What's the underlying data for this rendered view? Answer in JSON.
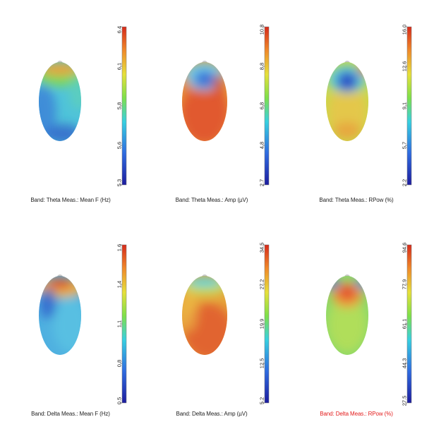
{
  "chart_data": [
    {
      "type": "heatmap",
      "caption": "Band: Theta   Meas.: Mean F (Hz)",
      "caption_color": "#222222",
      "scale_ticks": [
        "5.3",
        "5.6",
        "5.8",
        "6.1",
        "6.4"
      ],
      "range": [
        5.3,
        6.4
      ]
    },
    {
      "type": "heatmap",
      "caption": "Band: Theta   Meas.: Amp (µV)",
      "caption_color": "#222222",
      "scale_ticks": [
        "2.7",
        "4.8",
        "6.8",
        "8.8",
        "10.8"
      ],
      "range": [
        2.7,
        10.8
      ]
    },
    {
      "type": "heatmap",
      "caption": "Band: Theta   Meas.: RPow (%)",
      "caption_color": "#222222",
      "scale_ticks": [
        "2.2",
        "5.7",
        "9.1",
        "12.6",
        "16.0"
      ],
      "range": [
        2.2,
        16.0
      ]
    },
    {
      "type": "heatmap",
      "caption": "Band: Delta   Meas.: Mean F (Hz)",
      "caption_color": "#222222",
      "scale_ticks": [
        "0.5",
        "0.8",
        "1.1",
        "1.4",
        "1.6"
      ],
      "range": [
        0.5,
        1.6
      ]
    },
    {
      "type": "heatmap",
      "caption": "Band: Delta   Meas.: Amp (µV)",
      "caption_color": "#222222",
      "scale_ticks": [
        "5.2",
        "12.5",
        "19.9",
        "27.2",
        "34.5"
      ],
      "range": [
        5.2,
        34.5
      ]
    },
    {
      "type": "heatmap",
      "caption": "Band: Delta   Meas.: RPow (%)",
      "caption_color": "#e31b1b",
      "scale_ticks": [
        "27.5",
        "44.3",
        "61.1",
        "77.9",
        "94.6"
      ],
      "range": [
        27.5,
        94.6
      ]
    }
  ]
}
